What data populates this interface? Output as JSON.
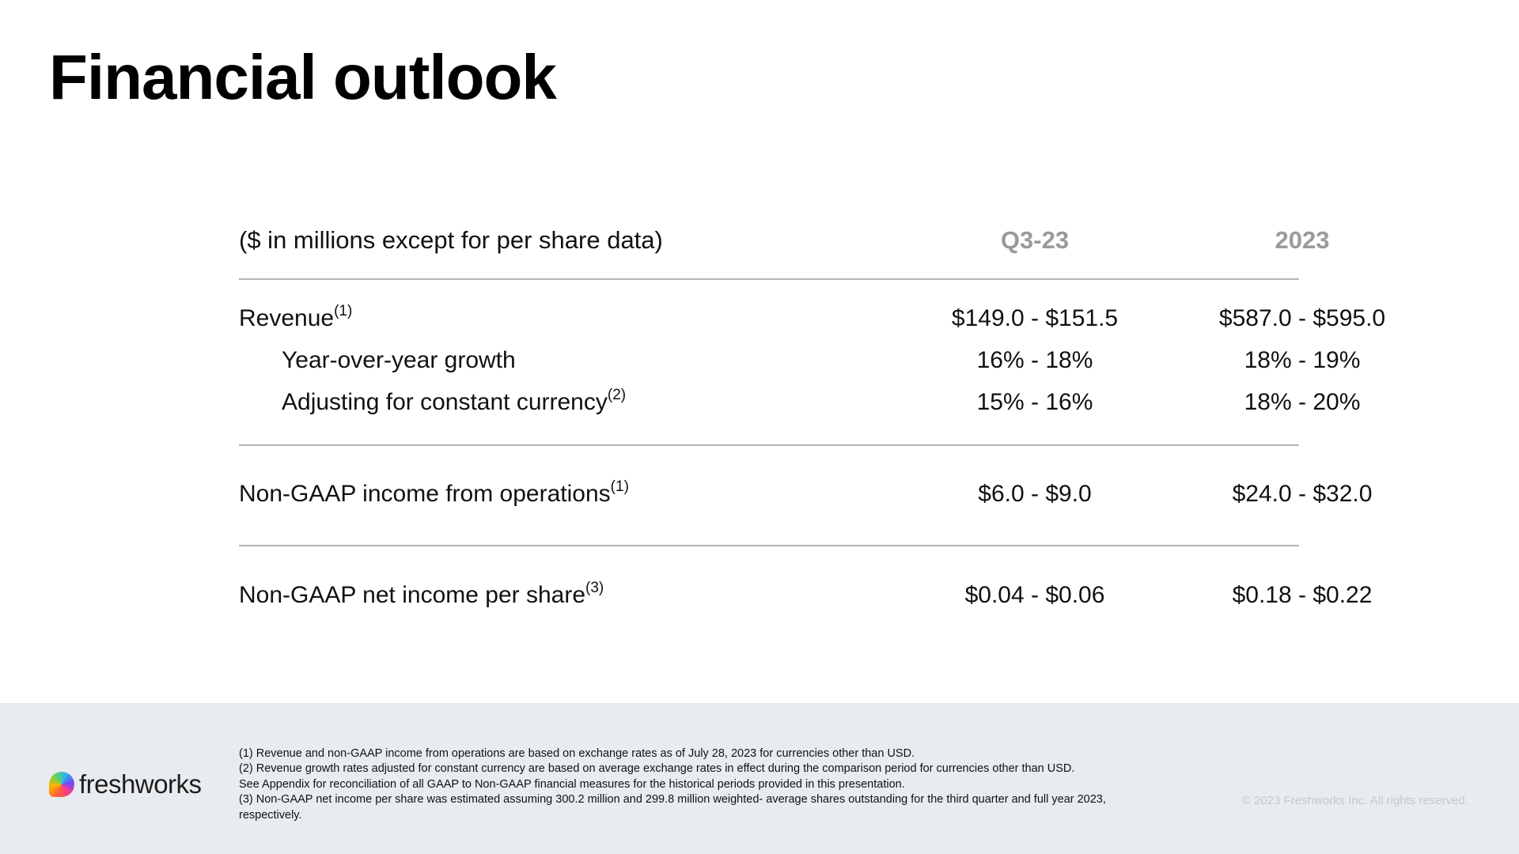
{
  "title": "Financial outlook",
  "table": {
    "header": {
      "label": "($ in millions except for per share data)",
      "col1": "Q3-23",
      "col2": "2023"
    },
    "revenue": {
      "label": "Revenue",
      "sup": "(1)",
      "col1": "$149.0 - $151.5",
      "col2": "$587.0 - $595.0"
    },
    "yoy_growth": {
      "label": "Year-over-year growth",
      "col1": "16% - 18%",
      "col2": "18% - 19%"
    },
    "constant_currency": {
      "label": "Adjusting for constant currency",
      "sup": "(2)",
      "col1": "15% - 16%",
      "col2": "18% - 20%"
    },
    "non_gaap_income": {
      "label": "Non-GAAP income from operations",
      "sup": "(1)",
      "col1": "$6.0 - $9.0",
      "col2": "$24.0 - $32.0"
    },
    "non_gaap_eps": {
      "label": "Non-GAAP net income per share",
      "sup": "(3)",
      "col1": "$0.04 - $0.06",
      "col2": "$0.18 - $0.22"
    }
  },
  "footer": {
    "logo_text": "freshworks",
    "logo_icon": "freshworks-logo-icon",
    "notes": [
      "(1) Revenue and non-GAAP income from operations are based on exchange rates as of July 28, 2023 for currencies other than USD.",
      "(2) Revenue growth rates adjusted for constant currency are based on average exchange rates in effect during the comparison period for currencies other than USD.",
      "See Appendix for reconciliation of all GAAP to Non-GAAP financial measures for the historical periods provided in this presentation.",
      "(3) Non-GAAP net income per share was estimated assuming 300.2 million and 299.8 million weighted- average shares outstanding for the third quarter and full year 2023,",
      "respectively."
    ],
    "copyright": "© 2023 Freshworks Inc. All rights reserved."
  },
  "colors": {
    "footer_bg": "#e9ecef",
    "header_gray": "#9a9a9a",
    "divider": "#b4b4b4"
  }
}
